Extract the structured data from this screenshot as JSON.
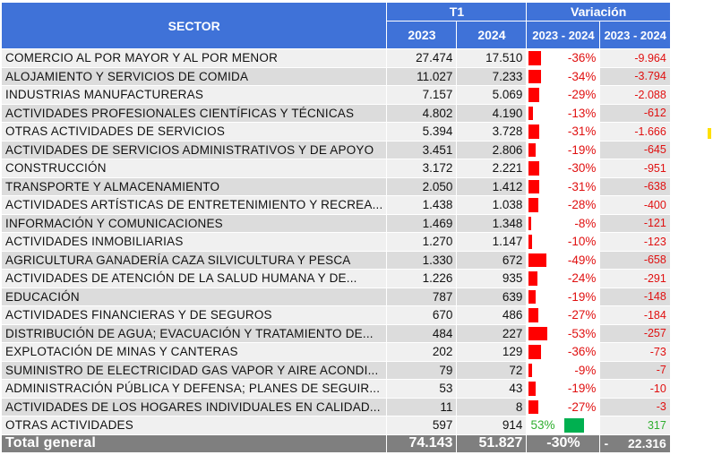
{
  "header": {
    "sector": "SECTOR",
    "period": "T1",
    "variation": "Variación",
    "year_a": "2023",
    "year_b": "2024",
    "range_pct": "2023 - 2024",
    "range_abs": "2023 - 2024"
  },
  "rows": [
    {
      "sector": "COMERCIO AL POR MAYOR Y AL POR MENOR",
      "y2023": "27.474",
      "y2024": "17.510",
      "pct": "-36%",
      "pct_value": -36,
      "abs": "-9.964"
    },
    {
      "sector": "ALOJAMIENTO Y SERVICIOS DE COMIDA",
      "y2023": "11.027",
      "y2024": "7.233",
      "pct": "-34%",
      "pct_value": -34,
      "abs": "-3.794"
    },
    {
      "sector": "INDUSTRIAS MANUFACTURERAS",
      "y2023": "7.157",
      "y2024": "5.069",
      "pct": "-29%",
      "pct_value": -29,
      "abs": "-2.088"
    },
    {
      "sector": "ACTIVIDADES PROFESIONALES CIENTÍFICAS Y TÉCNICAS",
      "y2023": "4.802",
      "y2024": "4.190",
      "pct": "-13%",
      "pct_value": -13,
      "abs": "-612"
    },
    {
      "sector": "OTRAS ACTIVIDADES DE SERVICIOS",
      "y2023": "5.394",
      "y2024": "3.728",
      "pct": "-31%",
      "pct_value": -31,
      "abs": "-1.666"
    },
    {
      "sector": "ACTIVIDADES DE SERVICIOS ADMINISTRATIVOS Y DE APOYO",
      "y2023": "3.451",
      "y2024": "2.806",
      "pct": "-19%",
      "pct_value": -19,
      "abs": "-645"
    },
    {
      "sector": "CONSTRUCCIÓN",
      "y2023": "3.172",
      "y2024": "2.221",
      "pct": "-30%",
      "pct_value": -30,
      "abs": "-951"
    },
    {
      "sector": "TRANSPORTE Y ALMACENAMIENTO",
      "y2023": "2.050",
      "y2024": "1.412",
      "pct": "-31%",
      "pct_value": -31,
      "abs": "-638"
    },
    {
      "sector": "ACTIVIDADES ARTÍSTICAS DE ENTRETENIMIENTO Y RECREA...",
      "y2023": "1.438",
      "y2024": "1.038",
      "pct": "-28%",
      "pct_value": -28,
      "abs": "-400"
    },
    {
      "sector": "INFORMACIÓN Y COMUNICACIONES",
      "y2023": "1.469",
      "y2024": "1.348",
      "pct": "-8%",
      "pct_value": -8,
      "abs": "-121"
    },
    {
      "sector": "ACTIVIDADES INMOBILIARIAS",
      "y2023": "1.270",
      "y2024": "1.147",
      "pct": "-10%",
      "pct_value": -10,
      "abs": "-123"
    },
    {
      "sector": "AGRICULTURA GANADERÍA CAZA SILVICULTURA Y PESCA",
      "y2023": "1.330",
      "y2024": "672",
      "pct": "-49%",
      "pct_value": -49,
      "abs": "-658"
    },
    {
      "sector": "ACTIVIDADES DE ATENCIÓN DE LA SALUD HUMANA Y DE...",
      "y2023": "1.226",
      "y2024": "935",
      "pct": "-24%",
      "pct_value": -24,
      "abs": "-291"
    },
    {
      "sector": "EDUCACIÓN",
      "y2023": "787",
      "y2024": "639",
      "pct": "-19%",
      "pct_value": -19,
      "abs": "-148"
    },
    {
      "sector": "ACTIVIDADES FINANCIERAS Y DE SEGUROS",
      "y2023": "670",
      "y2024": "486",
      "pct": "-27%",
      "pct_value": -27,
      "abs": "-184"
    },
    {
      "sector": "DISTRIBUCIÓN DE AGUA; EVACUACIÓN Y TRATAMIENTO DE...",
      "y2023": "484",
      "y2024": "227",
      "pct": "-53%",
      "pct_value": -53,
      "abs": "-257"
    },
    {
      "sector": "EXPLOTACIÓN DE MINAS Y CANTERAS",
      "y2023": "202",
      "y2024": "129",
      "pct": "-36%",
      "pct_value": -36,
      "abs": "-73"
    },
    {
      "sector": "SUMINISTRO DE ELECTRICIDAD GAS VAPOR Y AIRE ACONDI...",
      "y2023": "79",
      "y2024": "72",
      "pct": "-9%",
      "pct_value": -9,
      "abs": "-7"
    },
    {
      "sector": "ADMINISTRACIÓN PÚBLICA Y DEFENSA; PLANES DE SEGUIR...",
      "y2023": "53",
      "y2024": "43",
      "pct": "-19%",
      "pct_value": -19,
      "abs": "-10"
    },
    {
      "sector": "ACTIVIDADES DE LOS HOGARES INDIVIDUALES EN CALIDAD...",
      "y2023": "11",
      "y2024": "8",
      "pct": "-27%",
      "pct_value": -27,
      "abs": "-3"
    },
    {
      "sector": "OTRAS ACTIVIDADES",
      "y2023": "597",
      "y2024": "914",
      "pct": "53%",
      "pct_value": 53,
      "abs": "317"
    }
  ],
  "total": {
    "label": "Total general",
    "y2023": "74.143",
    "y2024": "51.827",
    "pct": "-30%",
    "abs_sign": "-",
    "abs": "22.316"
  },
  "colors": {
    "header": "#3f72d8",
    "negative": "#e01010",
    "positive": "#2fae2f",
    "bar_negative": "#ff0000",
    "bar_positive": "#00b050",
    "total": "#7f7f7f"
  }
}
